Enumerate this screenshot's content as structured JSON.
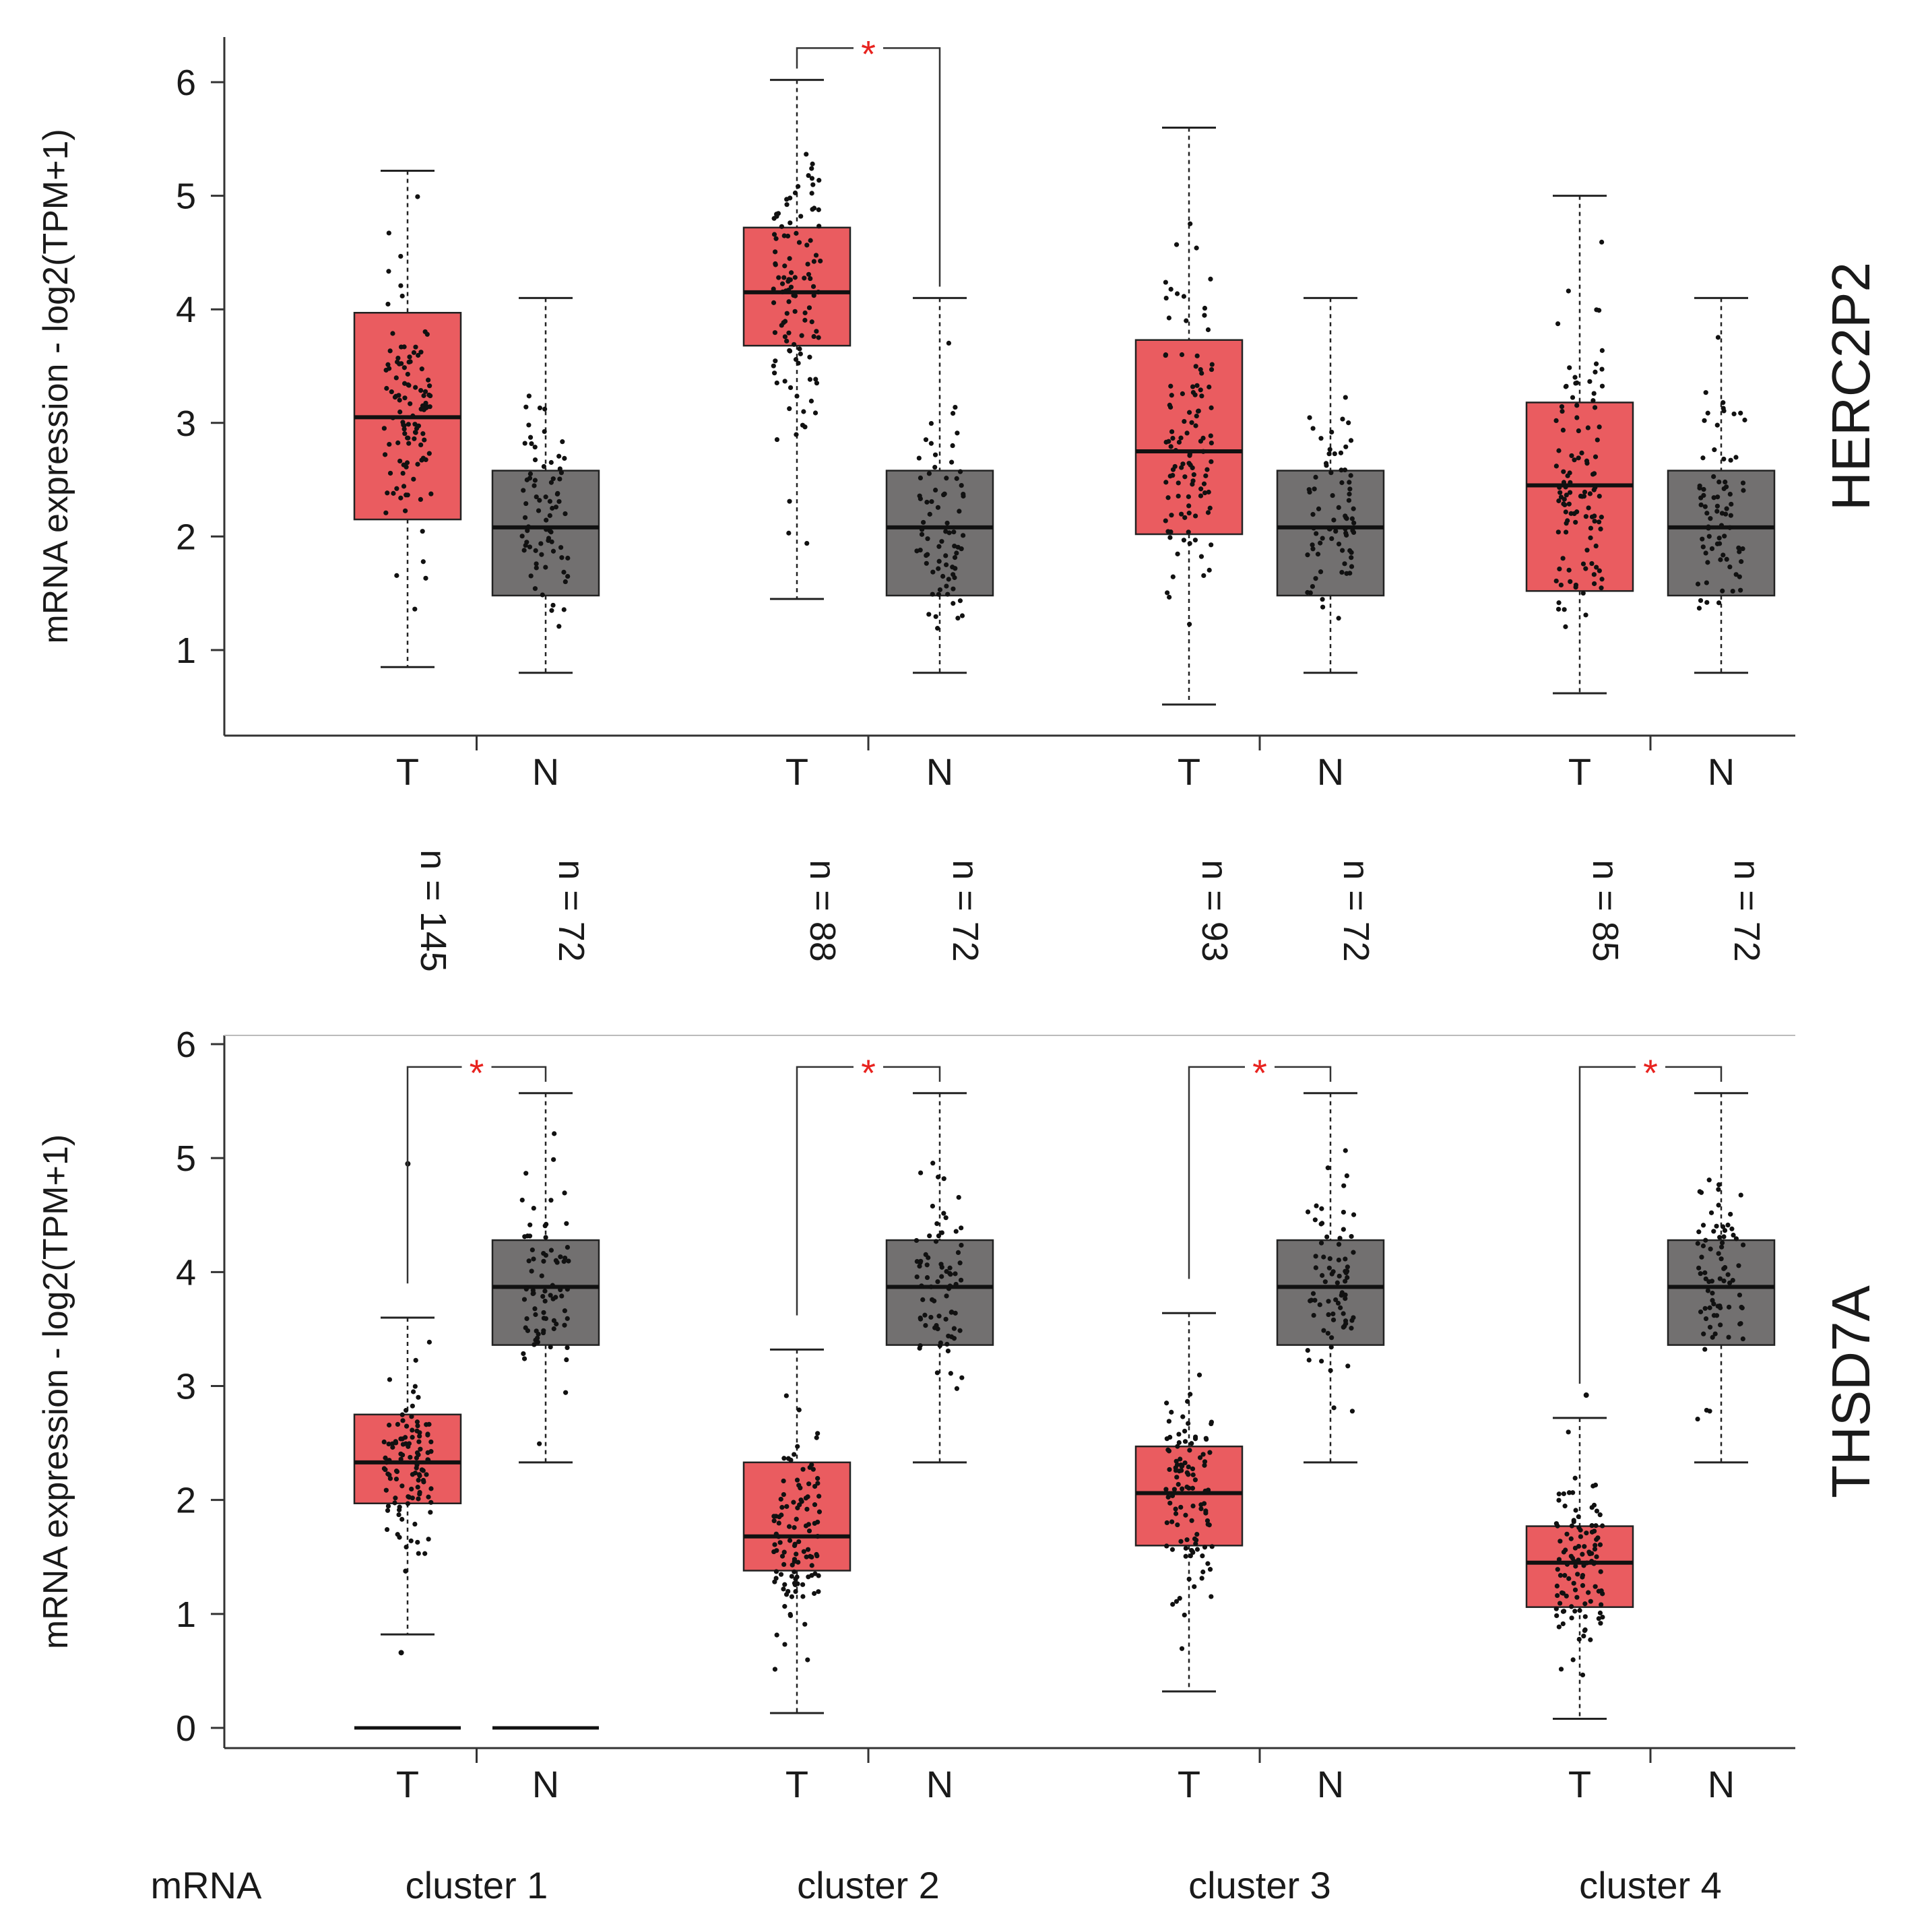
{
  "colors": {
    "tumor_box": "#ea5c60",
    "normal_box": "#727070",
    "significance": "#e8231f",
    "text": "#1a1a1a"
  },
  "row_label": "mRNA",
  "clusters": [
    "cluster 1",
    "cluster 2",
    "cluster 3",
    "cluster 4"
  ],
  "sample_counts": [
    {
      "tumor": "n = 145",
      "normal": "n = 72"
    },
    {
      "tumor": "n = 88",
      "normal": "n = 72"
    },
    {
      "tumor": "n = 93",
      "normal": "n = 72"
    },
    {
      "tumor": "n = 85",
      "normal": "n = 72"
    }
  ],
  "chart_data": [
    {
      "type": "box",
      "gene": "HERC2P2",
      "ylabel": "mRNA expression - log2(TPM+1)",
      "ylim": [
        0.4,
        6.4
      ],
      "yticks": [
        1,
        2,
        3,
        4,
        5,
        6
      ],
      "group_labels": [
        "T",
        "N"
      ],
      "boxes": [
        {
          "cluster": "cluster 1",
          "group": "T",
          "min": 0.85,
          "q1": 2.15,
          "median": 3.05,
          "q3": 3.97,
          "max": 5.22
        },
        {
          "cluster": "cluster 1",
          "group": "N",
          "min": 0.8,
          "q1": 1.48,
          "median": 2.08,
          "q3": 2.58,
          "max": 4.1
        },
        {
          "cluster": "cluster 2",
          "group": "T",
          "min": 1.45,
          "q1": 3.68,
          "median": 4.15,
          "q3": 4.72,
          "max": 6.02
        },
        {
          "cluster": "cluster 2",
          "group": "N",
          "min": 0.8,
          "q1": 1.48,
          "median": 2.08,
          "q3": 2.58,
          "max": 4.1
        },
        {
          "cluster": "cluster 3",
          "group": "T",
          "min": 0.52,
          "q1": 2.02,
          "median": 2.75,
          "q3": 3.73,
          "max": 5.6
        },
        {
          "cluster": "cluster 3",
          "group": "N",
          "min": 0.8,
          "q1": 1.48,
          "median": 2.08,
          "q3": 2.58,
          "max": 4.1
        },
        {
          "cluster": "cluster 4",
          "group": "T",
          "min": 0.62,
          "q1": 1.52,
          "median": 2.45,
          "q3": 3.18,
          "max": 5.0
        },
        {
          "cluster": "cluster 4",
          "group": "N",
          "min": 0.8,
          "q1": 1.48,
          "median": 2.08,
          "q3": 2.58,
          "max": 4.1
        }
      ],
      "significance": [
        {
          "cluster": "cluster 2",
          "label": "*",
          "y": 6.3
        }
      ]
    },
    {
      "type": "box",
      "gene": "THSD7A",
      "ylabel": "mRNA expression - log2(TPM+1)",
      "ylim": [
        -0.15,
        6.1
      ],
      "yticks": [
        0,
        1,
        2,
        3,
        4,
        5,
        6
      ],
      "group_labels": [
        "T",
        "N"
      ],
      "boxes": [
        {
          "cluster": "cluster 1",
          "group": "T",
          "min": 0.82,
          "q1": 1.97,
          "median": 2.33,
          "q3": 2.75,
          "max": 3.6,
          "outliers": [
            0.66,
            4.95
          ],
          "zero_line": true
        },
        {
          "cluster": "cluster 1",
          "group": "N",
          "min": 2.33,
          "q1": 3.36,
          "median": 3.87,
          "q3": 4.28,
          "max": 5.57,
          "zero_line": true
        },
        {
          "cluster": "cluster 2",
          "group": "T",
          "min": 0.13,
          "q1": 1.38,
          "median": 1.68,
          "q3": 2.33,
          "max": 3.32
        },
        {
          "cluster": "cluster 2",
          "group": "N",
          "min": 2.33,
          "q1": 3.36,
          "median": 3.87,
          "q3": 4.28,
          "max": 5.57
        },
        {
          "cluster": "cluster 3",
          "group": "T",
          "min": 0.32,
          "q1": 1.6,
          "median": 2.06,
          "q3": 2.47,
          "max": 3.64
        },
        {
          "cluster": "cluster 3",
          "group": "N",
          "min": 2.33,
          "q1": 3.36,
          "median": 3.87,
          "q3": 4.28,
          "max": 5.57
        },
        {
          "cluster": "cluster 4",
          "group": "T",
          "min": 0.08,
          "q1": 1.06,
          "median": 1.45,
          "q3": 1.77,
          "max": 2.72,
          "outliers": [
            2.92
          ]
        },
        {
          "cluster": "cluster 4",
          "group": "N",
          "min": 2.33,
          "q1": 3.36,
          "median": 3.87,
          "q3": 4.28,
          "max": 5.57
        }
      ],
      "significance": [
        {
          "cluster": "cluster 1",
          "label": "*",
          "y": 5.8
        },
        {
          "cluster": "cluster 2",
          "label": "*",
          "y": 5.8
        },
        {
          "cluster": "cluster 3",
          "label": "*",
          "y": 5.8
        },
        {
          "cluster": "cluster 4",
          "label": "*",
          "y": 5.8
        }
      ]
    }
  ]
}
